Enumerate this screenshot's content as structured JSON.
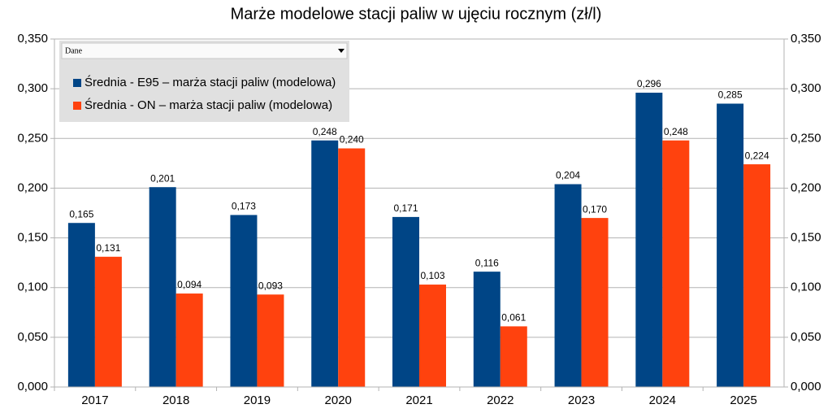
{
  "chart_data": {
    "type": "bar",
    "title": "Marże modelowe stacji paliw w ujęciu rocznym (zł/l)",
    "legend_header": "Dane",
    "categories": [
      "2017",
      "2018",
      "2019",
      "2020",
      "2021",
      "2022",
      "2023",
      "2024",
      "2025"
    ],
    "series": [
      {
        "name": "Średnia - E95 – marża stacji paliw (modelowa)",
        "color": "#004586",
        "values": [
          0.165,
          0.201,
          0.173,
          0.248,
          0.171,
          0.116,
          0.204,
          0.296,
          0.285
        ],
        "value_labels": [
          "0,165",
          "0,201",
          "0,173",
          "0,248",
          "0,171",
          "0,116",
          "0,204",
          "0,296",
          "0,285"
        ]
      },
      {
        "name": "Średnia - ON – marża stacji paliw (modelowa)",
        "color": "#ff420e",
        "values": [
          0.131,
          0.094,
          0.093,
          0.24,
          0.103,
          0.061,
          0.17,
          0.248,
          0.224
        ],
        "value_labels": [
          "0,131",
          "0,094",
          "0,093",
          "0,240",
          "0,103",
          "0,061",
          "0,170",
          "0,248",
          "0,224"
        ]
      }
    ],
    "ylim": [
      0,
      0.35
    ],
    "yticks": [
      {
        "value": 0,
        "label": "0,000"
      },
      {
        "value": 0.05,
        "label": "0,050"
      },
      {
        "value": 0.1,
        "label": "0,100"
      },
      {
        "value": 0.15,
        "label": "0,150"
      },
      {
        "value": 0.2,
        "label": "0,200"
      },
      {
        "value": 0.25,
        "label": "0,250"
      },
      {
        "value": 0.3,
        "label": "0,300"
      },
      {
        "value": 0.35,
        "label": "0,350"
      }
    ],
    "y2lim": [
      0,
      0.35
    ],
    "y2ticks": [
      {
        "value": 0,
        "label": "0,000"
      },
      {
        "value": 0.05,
        "label": "0,050"
      },
      {
        "value": 0.1,
        "label": "0,100"
      },
      {
        "value": 0.15,
        "label": "0,150"
      },
      {
        "value": 0.2,
        "label": "0,200"
      },
      {
        "value": 0.25,
        "label": "0,250"
      },
      {
        "value": 0.3,
        "label": "0,300"
      },
      {
        "value": 0.35,
        "label": "0,350"
      }
    ],
    "grid": true
  }
}
